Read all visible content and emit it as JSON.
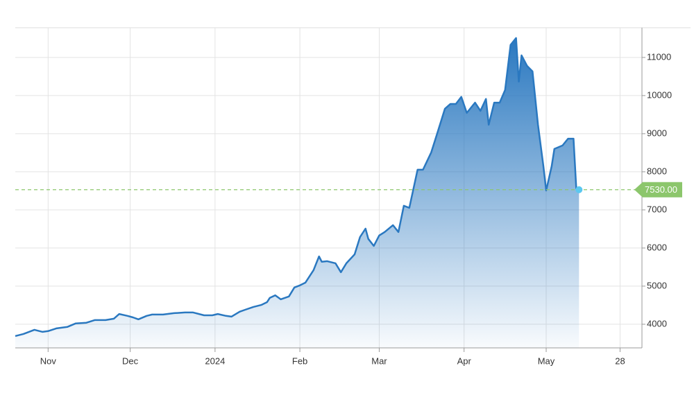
{
  "chart_data": {
    "type": "area",
    "x": [
      19,
      22,
      26,
      29,
      31,
      34,
      38,
      41,
      45,
      48,
      52,
      55,
      57,
      60,
      62,
      64,
      67,
      69,
      73,
      77,
      81,
      84,
      88,
      91,
      93,
      96,
      98,
      101,
      103,
      106,
      109,
      111,
      112,
      114,
      116,
      119,
      121,
      123,
      125,
      128,
      130,
      131,
      133,
      136,
      138,
      140,
      143,
      145,
      147,
      148,
      150,
      152,
      154,
      157,
      159,
      161,
      163,
      166,
      168,
      171,
      173,
      176,
      178,
      180,
      182,
      184,
      187,
      189,
      191,
      192,
      194,
      196,
      198,
      200,
      202,
      203,
      204,
      206,
      208,
      210,
      212,
      213,
      215,
      216,
      219,
      221,
      223,
      224,
      225
    ],
    "values": [
      3690,
      3745,
      3855,
      3800,
      3820,
      3890,
      3930,
      4020,
      4040,
      4110,
      4110,
      4145,
      4270,
      4220,
      4180,
      4130,
      4220,
      4255,
      4255,
      4290,
      4310,
      4310,
      4235,
      4235,
      4270,
      4220,
      4200,
      4330,
      4380,
      4455,
      4510,
      4580,
      4690,
      4760,
      4655,
      4730,
      4965,
      5020,
      5090,
      5420,
      5780,
      5640,
      5655,
      5600,
      5365,
      5600,
      5835,
      6290,
      6510,
      6240,
      6055,
      6330,
      6420,
      6600,
      6420,
      7110,
      7055,
      8055,
      8055,
      8510,
      8965,
      9655,
      9780,
      9780,
      9965,
      9545,
      9815,
      9600,
      9910,
      9235,
      9815,
      9815,
      10145,
      11330,
      11510,
      10365,
      11055,
      10780,
      10635,
      9235,
      8145,
      7510,
      8145,
      8600,
      8690,
      8870,
      8870,
      7550,
      7530
    ],
    "color": "#2a78c0",
    "xlim": [
      19,
      248
    ],
    "xticks": [
      {
        "value": 31,
        "label": "Nov"
      },
      {
        "value": 61,
        "label": "Dec"
      },
      {
        "value": 92,
        "label": "2024"
      },
      {
        "value": 123,
        "label": "Feb"
      },
      {
        "value": 152,
        "label": "Mar"
      },
      {
        "value": 183,
        "label": "Apr"
      },
      {
        "value": 213,
        "label": "May"
      },
      {
        "value": 240,
        "label": "28"
      }
    ],
    "ylim": [
      3380,
      11780
    ],
    "yticks": [
      4000,
      5000,
      6000,
      7000,
      8000,
      9000,
      10000,
      11000
    ],
    "current": {
      "value": 7530,
      "label": "7530.00"
    },
    "current_color": "#8cc66c",
    "grid": true
  }
}
